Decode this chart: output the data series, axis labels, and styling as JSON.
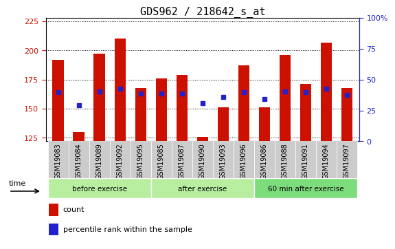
{
  "title": "GDS962 / 218642_s_at",
  "categories": [
    "GSM19083",
    "GSM19084",
    "GSM19089",
    "GSM19092",
    "GSM19095",
    "GSM19085",
    "GSM19087",
    "GSM19090",
    "GSM19093",
    "GSM19096",
    "GSM19086",
    "GSM19088",
    "GSM19091",
    "GSM19094",
    "GSM19097"
  ],
  "bar_tops": [
    192,
    130,
    197,
    210,
    168,
    176,
    179,
    126,
    151,
    187,
    151,
    196,
    171,
    207,
    168
  ],
  "bar_bottom": 122,
  "blue_dot_y": [
    164,
    153,
    165,
    167,
    163,
    163,
    163,
    155,
    160,
    164,
    158,
    165,
    164,
    167,
    162
  ],
  "bar_color": "#cc1100",
  "dot_color": "#2222cc",
  "ylim": [
    122,
    228
  ],
  "y_ticks_left": [
    125,
    150,
    175,
    200,
    225
  ],
  "y_ticks_right_vals": [
    0,
    25,
    50,
    75,
    100
  ],
  "y_ticks_right_labels": [
    "0",
    "25",
    "50",
    "75",
    "100%"
  ],
  "group_labels": [
    "before exercise",
    "after exercise",
    "60 min after exercise"
  ],
  "group_starts": [
    0,
    5,
    10
  ],
  "group_ends": [
    5,
    10,
    15
  ],
  "group_colors": [
    "#b8eea0",
    "#b8eea0",
    "#7ddd7d"
  ],
  "legend_labels": [
    "count",
    "percentile rank within the sample"
  ],
  "legend_colors": [
    "#cc1100",
    "#2222cc"
  ],
  "title_fontsize": 11,
  "tick_fontsize": 7,
  "bar_width": 0.55
}
